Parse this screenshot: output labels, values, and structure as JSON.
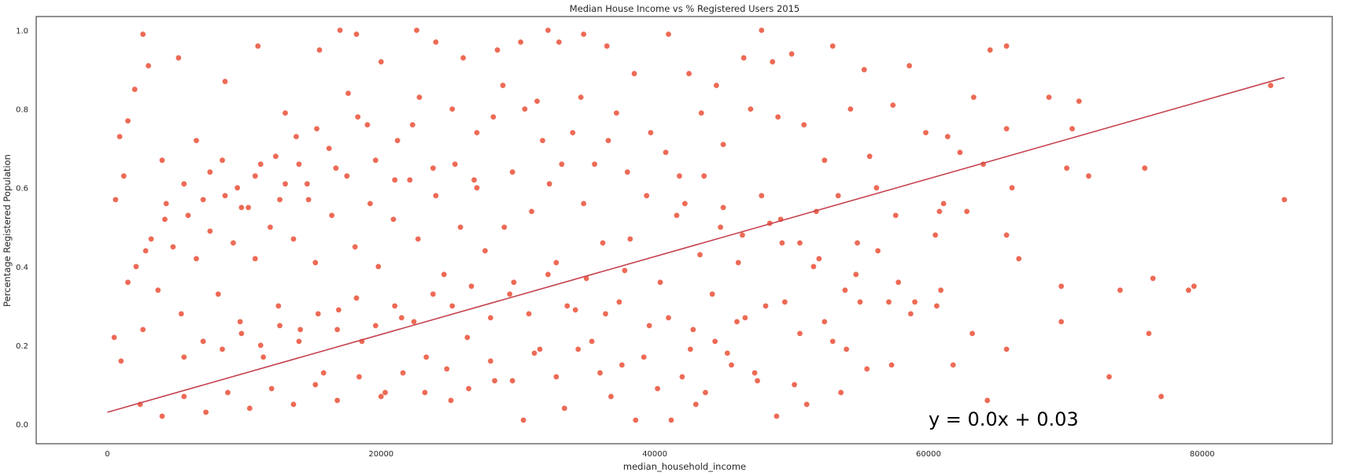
{
  "chart_data": {
    "type": "scatter",
    "title": "Median House Income vs % Registered Users 2015",
    "xlabel": "median_household_income",
    "ylabel": "Percentage Registered Population",
    "xlim": [
      -5200,
      89500
    ],
    "ylim": [
      -0.05,
      1.035
    ],
    "x_ticks": [
      0,
      20000,
      40000,
      60000,
      80000
    ],
    "y_ticks": [
      0.0,
      0.2,
      0.4,
      0.6,
      0.8,
      1.0
    ],
    "x_tick_labels": [
      "0",
      "20000",
      "40000",
      "60000",
      "80000"
    ],
    "y_tick_labels": [
      "0.0",
      "0.2",
      "0.4",
      "0.6",
      "0.8",
      "1.0"
    ],
    "grid": false,
    "point_color": "#ee6a55",
    "line_color": "#c6434f",
    "annotation": {
      "text": "y = 0.0x + 0.03",
      "x": 60000,
      "y": 0.0
    },
    "regression_line": {
      "x": [
        0,
        86000
      ],
      "y": [
        0.03,
        0.88
      ]
    },
    "series": [
      {
        "points": [
          [
            2600,
            0.99
          ],
          [
            17000,
            1.0
          ],
          [
            18200,
            0.99
          ],
          [
            22600,
            1.0
          ],
          [
            32200,
            1.0
          ],
          [
            34800,
            0.99
          ],
          [
            41000,
            0.99
          ],
          [
            47800,
            1.0
          ],
          [
            3000,
            0.91
          ],
          [
            5200,
            0.93
          ],
          [
            8600,
            0.87
          ],
          [
            11000,
            0.96
          ],
          [
            13000,
            0.79
          ],
          [
            15500,
            0.95
          ],
          [
            20000,
            0.92
          ],
          [
            24000,
            0.97
          ],
          [
            26000,
            0.93
          ],
          [
            28500,
            0.95
          ],
          [
            30200,
            0.97
          ],
          [
            33000,
            0.97
          ],
          [
            36500,
            0.96
          ],
          [
            38500,
            0.89
          ],
          [
            42500,
            0.89
          ],
          [
            44500,
            0.86
          ],
          [
            46500,
            0.93
          ],
          [
            48600,
            0.92
          ],
          [
            50000,
            0.94
          ],
          [
            53000,
            0.96
          ],
          [
            55300,
            0.9
          ],
          [
            58600,
            0.91
          ],
          [
            64500,
            0.95
          ],
          [
            65700,
            0.96
          ],
          [
            1500,
            0.77
          ],
          [
            2000,
            0.85
          ],
          [
            1200,
            0.63
          ],
          [
            600,
            0.57
          ],
          [
            900,
            0.73
          ],
          [
            4000,
            0.67
          ],
          [
            6500,
            0.72
          ],
          [
            7500,
            0.64
          ],
          [
            9500,
            0.6
          ],
          [
            10800,
            0.63
          ],
          [
            12300,
            0.68
          ],
          [
            13800,
            0.73
          ],
          [
            14600,
            0.61
          ],
          [
            16200,
            0.7
          ],
          [
            17600,
            0.84
          ],
          [
            19000,
            0.76
          ],
          [
            21200,
            0.72
          ],
          [
            22800,
            0.83
          ],
          [
            25400,
            0.66
          ],
          [
            27000,
            0.74
          ],
          [
            28900,
            0.86
          ],
          [
            31400,
            0.82
          ],
          [
            34000,
            0.74
          ],
          [
            35600,
            0.66
          ],
          [
            37200,
            0.79
          ],
          [
            39700,
            0.74
          ],
          [
            41800,
            0.63
          ],
          [
            43400,
            0.79
          ],
          [
            45000,
            0.71
          ],
          [
            47000,
            0.8
          ],
          [
            49000,
            0.78
          ],
          [
            50900,
            0.76
          ],
          [
            52400,
            0.67
          ],
          [
            54300,
            0.8
          ],
          [
            55700,
            0.68
          ],
          [
            57400,
            0.81
          ],
          [
            59800,
            0.74
          ],
          [
            61400,
            0.73
          ],
          [
            62300,
            0.69
          ],
          [
            63300,
            0.83
          ],
          [
            65700,
            0.75
          ],
          [
            68800,
            0.83
          ],
          [
            71000,
            0.82
          ],
          [
            70500,
            0.75
          ],
          [
            71700,
            0.63
          ],
          [
            70100,
            0.65
          ],
          [
            75800,
            0.65
          ],
          [
            85000,
            0.86
          ],
          [
            86000,
            0.57
          ],
          [
            77000,
            0.07
          ],
          [
            79000,
            0.34
          ],
          [
            79400,
            0.35
          ],
          [
            76400,
            0.37
          ],
          [
            73200,
            0.12
          ],
          [
            76100,
            0.23
          ],
          [
            74000,
            0.34
          ],
          [
            69700,
            0.35
          ],
          [
            69700,
            0.26
          ],
          [
            65700,
            0.48
          ],
          [
            66100,
            0.6
          ],
          [
            65700,
            0.19
          ],
          [
            66600,
            0.42
          ],
          [
            64300,
            0.06
          ],
          [
            64000,
            0.66
          ],
          [
            63200,
            0.23
          ],
          [
            62800,
            0.54
          ],
          [
            61100,
            0.56
          ],
          [
            61800,
            0.15
          ],
          [
            60900,
            0.34
          ],
          [
            60600,
            0.3
          ],
          [
            60500,
            0.48
          ],
          [
            60800,
            0.54
          ],
          [
            59000,
            0.31
          ],
          [
            58700,
            0.28
          ],
          [
            57800,
            0.36
          ],
          [
            57300,
            0.15
          ],
          [
            57100,
            0.31
          ],
          [
            56300,
            0.44
          ],
          [
            55500,
            0.14
          ],
          [
            55000,
            0.31
          ],
          [
            54700,
            0.38
          ],
          [
            54000,
            0.19
          ],
          [
            53900,
            0.34
          ],
          [
            53600,
            0.08
          ],
          [
            53000,
            0.21
          ],
          [
            52400,
            0.26
          ],
          [
            51600,
            0.4
          ],
          [
            51800,
            0.54
          ],
          [
            51100,
            0.05
          ],
          [
            50600,
            0.23
          ],
          [
            50200,
            0.1
          ],
          [
            49500,
            0.31
          ],
          [
            49300,
            0.46
          ],
          [
            48900,
            0.02
          ],
          [
            48400,
            0.51
          ],
          [
            48100,
            0.3
          ],
          [
            47300,
            0.13
          ],
          [
            46600,
            0.27
          ],
          [
            46100,
            0.41
          ],
          [
            45300,
            0.18
          ],
          [
            44800,
            0.5
          ],
          [
            44200,
            0.33
          ],
          [
            43700,
            0.08
          ],
          [
            43300,
            0.43
          ],
          [
            42600,
            0.19
          ],
          [
            42000,
            0.12
          ],
          [
            41600,
            0.53
          ],
          [
            41200,
            0.01
          ],
          [
            40400,
            0.36
          ],
          [
            39600,
            0.25
          ],
          [
            38600,
            0.01
          ],
          [
            38200,
            0.47
          ],
          [
            37400,
            0.31
          ],
          [
            36800,
            0.07
          ],
          [
            36200,
            0.46
          ],
          [
            35400,
            0.21
          ],
          [
            34800,
            0.56
          ],
          [
            34200,
            0.29
          ],
          [
            33400,
            0.04
          ],
          [
            32800,
            0.41
          ],
          [
            32300,
            0.61
          ],
          [
            31600,
            0.19
          ],
          [
            31000,
            0.54
          ],
          [
            30400,
            0.01
          ],
          [
            29700,
            0.36
          ],
          [
            29000,
            0.5
          ],
          [
            28300,
            0.11
          ],
          [
            27600,
            0.44
          ],
          [
            27000,
            0.6
          ],
          [
            26300,
            0.22
          ],
          [
            25800,
            0.5
          ],
          [
            25100,
            0.06
          ],
          [
            24600,
            0.38
          ],
          [
            24000,
            0.58
          ],
          [
            23300,
            0.17
          ],
          [
            22700,
            0.47
          ],
          [
            22100,
            0.62
          ],
          [
            21500,
            0.27
          ],
          [
            20900,
            0.52
          ],
          [
            20300,
            0.08
          ],
          [
            19800,
            0.4
          ],
          [
            19200,
            0.56
          ],
          [
            18600,
            0.21
          ],
          [
            18100,
            0.45
          ],
          [
            17500,
            0.63
          ],
          [
            16900,
            0.29
          ],
          [
            16400,
            0.53
          ],
          [
            15800,
            0.13
          ],
          [
            15200,
            0.41
          ],
          [
            14700,
            0.57
          ],
          [
            14100,
            0.24
          ],
          [
            13600,
            0.47
          ],
          [
            13000,
            0.61
          ],
          [
            12500,
            0.3
          ],
          [
            11900,
            0.5
          ],
          [
            11400,
            0.17
          ],
          [
            10800,
            0.42
          ],
          [
            10300,
            0.55
          ],
          [
            9700,
            0.26
          ],
          [
            9200,
            0.46
          ],
          [
            8600,
            0.58
          ],
          [
            8100,
            0.33
          ],
          [
            7500,
            0.49
          ],
          [
            7000,
            0.21
          ],
          [
            6500,
            0.42
          ],
          [
            5900,
            0.53
          ],
          [
            5400,
            0.28
          ],
          [
            4800,
            0.45
          ],
          [
            4300,
            0.56
          ],
          [
            3700,
            0.34
          ],
          [
            3200,
            0.47
          ],
          [
            2600,
            0.24
          ],
          [
            2100,
            0.4
          ],
          [
            1500,
            0.36
          ],
          [
            1000,
            0.16
          ],
          [
            500,
            0.22
          ],
          [
            30500,
            0.8
          ],
          [
            31800,
            0.72
          ],
          [
            33200,
            0.66
          ],
          [
            34600,
            0.83
          ],
          [
            29600,
            0.64
          ],
          [
            28200,
            0.78
          ],
          [
            26800,
            0.62
          ],
          [
            25200,
            0.8
          ],
          [
            23800,
            0.65
          ],
          [
            22300,
            0.76
          ],
          [
            21000,
            0.62
          ],
          [
            19600,
            0.67
          ],
          [
            18300,
            0.78
          ],
          [
            16700,
            0.65
          ],
          [
            15300,
            0.75
          ],
          [
            14000,
            0.66
          ],
          [
            12600,
            0.57
          ],
          [
            11200,
            0.66
          ],
          [
            9800,
            0.55
          ],
          [
            8400,
            0.67
          ],
          [
            7000,
            0.57
          ],
          [
            5600,
            0.61
          ],
          [
            4200,
            0.52
          ],
          [
            2800,
            0.44
          ],
          [
            36600,
            0.72
          ],
          [
            38000,
            0.64
          ],
          [
            39400,
            0.58
          ],
          [
            40800,
            0.69
          ],
          [
            42200,
            0.56
          ],
          [
            43600,
            0.63
          ],
          [
            45000,
            0.55
          ],
          [
            46400,
            0.48
          ],
          [
            47800,
            0.58
          ],
          [
            49200,
            0.52
          ],
          [
            50600,
            0.46
          ],
          [
            52000,
            0.42
          ],
          [
            53400,
            0.58
          ],
          [
            54800,
            0.46
          ],
          [
            56200,
            0.6
          ],
          [
            57600,
            0.53
          ],
          [
            37800,
            0.39
          ],
          [
            36400,
            0.28
          ],
          [
            35000,
            0.37
          ],
          [
            33600,
            0.3
          ],
          [
            32200,
            0.38
          ],
          [
            30800,
            0.28
          ],
          [
            29400,
            0.33
          ],
          [
            28000,
            0.27
          ],
          [
            26600,
            0.35
          ],
          [
            25200,
            0.3
          ],
          [
            23800,
            0.33
          ],
          [
            22400,
            0.26
          ],
          [
            21000,
            0.3
          ],
          [
            19600,
            0.25
          ],
          [
            18200,
            0.32
          ],
          [
            16800,
            0.24
          ],
          [
            15400,
            0.28
          ],
          [
            14000,
            0.21
          ],
          [
            12600,
            0.25
          ],
          [
            11200,
            0.2
          ],
          [
            9800,
            0.23
          ],
          [
            8400,
            0.19
          ],
          [
            7000,
            0.21
          ],
          [
            5600,
            0.17
          ],
          [
            39200,
            0.17
          ],
          [
            37600,
            0.15
          ],
          [
            36000,
            0.13
          ],
          [
            34400,
            0.19
          ],
          [
            32800,
            0.12
          ],
          [
            31200,
            0.18
          ],
          [
            29600,
            0.11
          ],
          [
            28000,
            0.16
          ],
          [
            26400,
            0.09
          ],
          [
            24800,
            0.14
          ],
          [
            23200,
            0.08
          ],
          [
            21600,
            0.13
          ],
          [
            20000,
            0.07
          ],
          [
            18400,
            0.12
          ],
          [
            16800,
            0.06
          ],
          [
            15200,
            0.1
          ],
          [
            13600,
            0.05
          ],
          [
            12000,
            0.09
          ],
          [
            10400,
            0.04
          ],
          [
            8800,
            0.08
          ],
          [
            7200,
            0.03
          ],
          [
            5600,
            0.07
          ],
          [
            4000,
            0.02
          ],
          [
            2400,
            0.05
          ],
          [
            41000,
            0.27
          ],
          [
            42800,
            0.24
          ],
          [
            44400,
            0.21
          ],
          [
            46000,
            0.26
          ],
          [
            40200,
            0.09
          ],
          [
            43000,
            0.05
          ],
          [
            45600,
            0.15
          ],
          [
            47500,
            0.11
          ]
        ]
      }
    ]
  }
}
